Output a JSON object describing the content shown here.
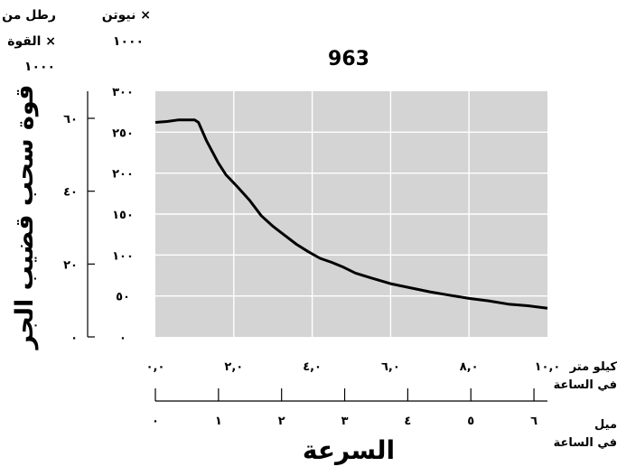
{
  "chart_data": {
    "type": "line",
    "title": "963",
    "xlabel": "السرعة",
    "ylabel": "قوة سحب قضيب الجر",
    "x_primary_unit": [
      "كيلو متر",
      "في الساعة"
    ],
    "x_secondary_unit": [
      "ميل",
      "في الساعة"
    ],
    "y_left_unit": [
      "رطل من",
      "القوة ×",
      "١٠٠٠"
    ],
    "y_right_unit": [
      "نيوتن ×",
      "١٠٠٠"
    ],
    "xlim": [
      0,
      10
    ],
    "ylim_newton_kilo": [
      0,
      300
    ],
    "ylim_pound_kilo": [
      0,
      67.44
    ],
    "grid": true,
    "x_ticks": [
      0,
      2,
      4,
      6,
      8,
      10
    ],
    "x_tick_labels": [
      "٠,٠",
      "٢,٠",
      "٤,٠",
      "٦,٠",
      "٨,٠",
      "١٠,٠"
    ],
    "mile_ticks": [
      0,
      1,
      2,
      3,
      4,
      5,
      6
    ],
    "mile_tick_labels": [
      "٠",
      "١",
      "٢",
      "٣",
      "٤",
      "٥",
      "٦"
    ],
    "y_newton_ticks": [
      0,
      50,
      100,
      150,
      200,
      250,
      300
    ],
    "y_newton_tick_labels": [
      "٠",
      "٥٠",
      "١٠٠",
      "١٥٠",
      "٢٠٠",
      "٢٥٠",
      "٣٠٠"
    ],
    "y_pound_ticks": [
      0,
      20,
      40,
      60
    ],
    "y_pound_tick_labels": [
      "٠",
      "٢٠",
      "٤٠",
      "٦٠"
    ],
    "series": [
      {
        "x": [
          0,
          0.3,
          0.6,
          0.9,
          1.0,
          1.1,
          1.3,
          1.6,
          1.8,
          2.1,
          2.4,
          2.7,
          3.0,
          3.3,
          3.6,
          3.9,
          4.2,
          4.5,
          4.8,
          5.1,
          5.5,
          6.0,
          6.5,
          7.0,
          7.5,
          8.0,
          8.5,
          9.0,
          9.5,
          10.0
        ],
        "y": [
          262,
          263,
          265,
          265,
          265,
          262,
          240,
          213,
          198,
          183,
          167,
          148,
          135,
          124,
          113,
          104,
          96,
          91,
          85,
          78,
          72,
          65,
          60,
          55,
          51,
          47,
          44,
          40,
          38,
          35
        ]
      }
    ]
  },
  "colors": {
    "plot_bg": "#d4d4d4",
    "grid": "#ffffff",
    "line": "#000000"
  }
}
